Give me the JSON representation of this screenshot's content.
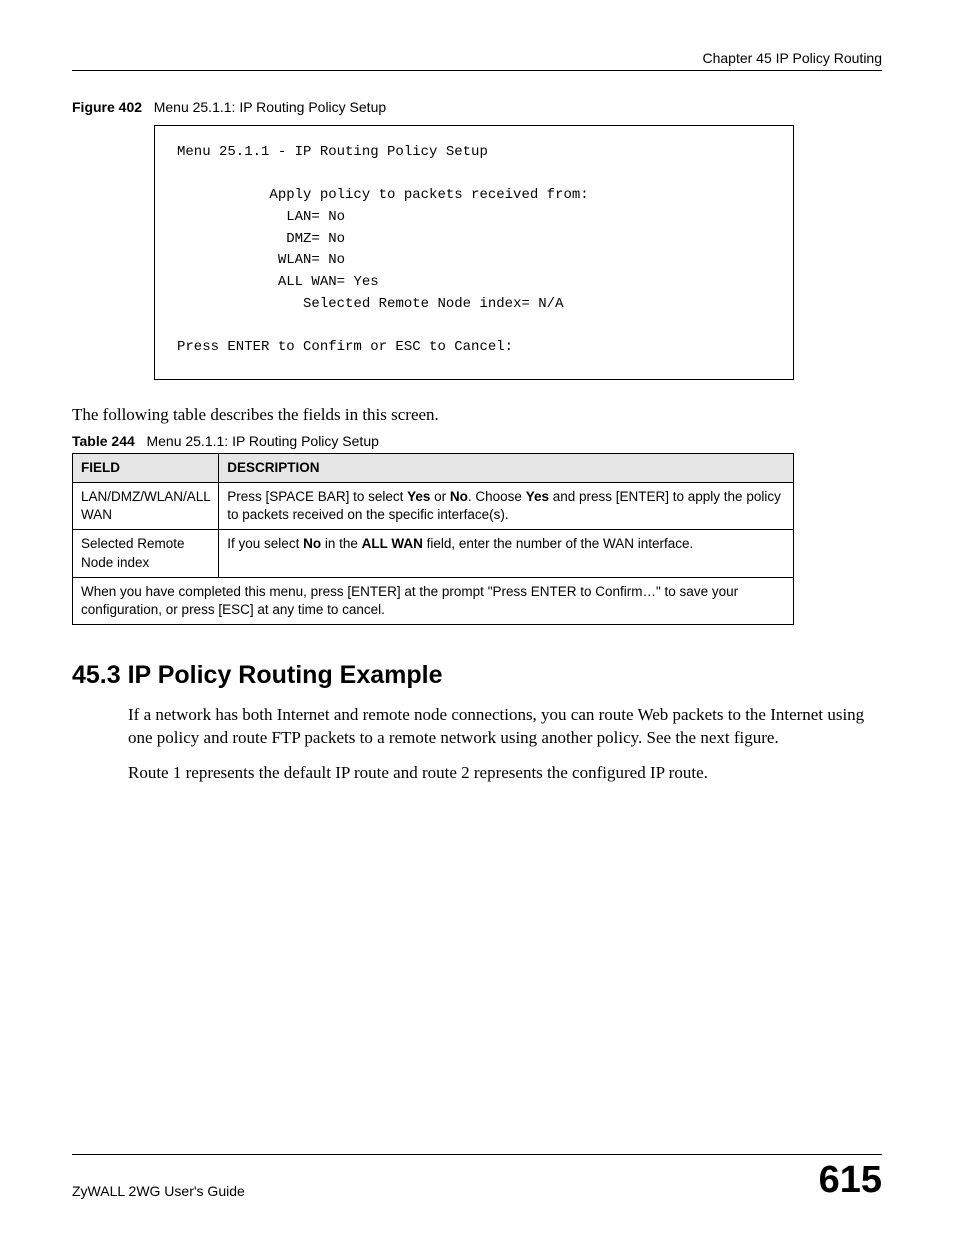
{
  "header": {
    "chapter": "Chapter 45 IP Policy Routing"
  },
  "figure": {
    "label": "Figure 402",
    "title": "Menu 25.1.1: IP Routing Policy Setup"
  },
  "terminal": {
    "title": "Menu 25.1.1 - IP Routing Policy Setup",
    "prompt_label": "Apply policy to packets received from:",
    "lan": "LAN= No",
    "dmz": "DMZ= No",
    "wlan": "WLAN= No",
    "allwan": "ALL WAN= Yes",
    "selected": "Selected Remote Node index= N/A",
    "confirm": "Press ENTER to Confirm or ESC to Cancel:"
  },
  "intro": "The following table describes the fields in this screen.",
  "table": {
    "label": "Table 244",
    "title": "Menu 25.1.1: IP Routing Policy Setup",
    "head_field": "FIELD",
    "head_desc": "DESCRIPTION",
    "row1_field": "LAN/DMZ/WLAN/ALL WAN",
    "row1_desc_a": "Press [SPACE BAR] to select ",
    "row1_desc_b": "Yes",
    "row1_desc_c": " or ",
    "row1_desc_d": "No",
    "row1_desc_e": ". Choose ",
    "row1_desc_f": "Yes",
    "row1_desc_g": " and press [ENTER] to apply the policy to packets received on the specific interface(s).",
    "row2_field": "Selected Remote Node index",
    "row2_desc_a": "If you select ",
    "row2_desc_b": "No",
    "row2_desc_c": " in the ",
    "row2_desc_d": "ALL WAN",
    "row2_desc_e": " field, enter the number of the WAN interface.",
    "footer_note": "When you have completed this menu, press [ENTER] at the prompt \"Press ENTER to Confirm…\" to save your configuration, or press [ESC] at any time to cancel."
  },
  "section": {
    "heading": "45.3  IP Policy Routing Example",
    "para1": "If a network has both Internet and remote node connections, you can route Web packets to the Internet using one policy and route FTP packets to a remote network using another policy. See the next figure.",
    "para2": "Route 1 represents the default IP route and route 2 represents the configured IP route."
  },
  "footer": {
    "guide": "ZyWALL 2WG User's Guide",
    "page": "615"
  }
}
